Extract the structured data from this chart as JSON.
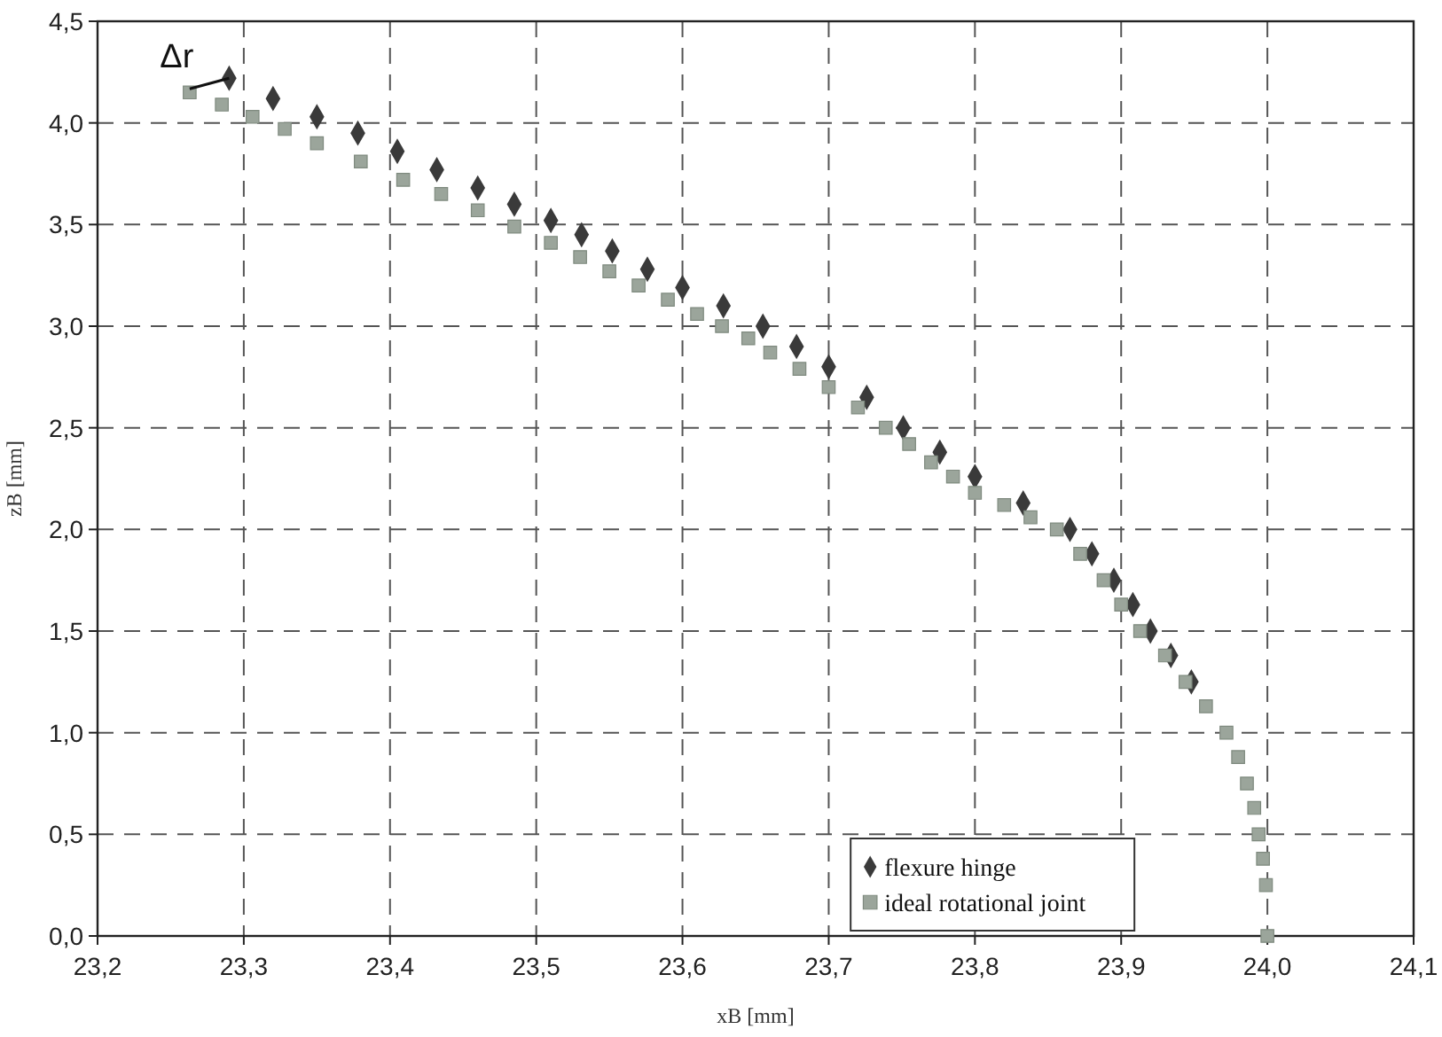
{
  "chart_data": {
    "type": "scatter",
    "xlabel": "xB [mm]",
    "ylabel": "zB [mm]",
    "xlim": [
      23.2,
      24.1
    ],
    "xticks": [
      {
        "value": 23.2,
        "label": "23,2"
      },
      {
        "value": 23.3,
        "label": "23,3"
      },
      {
        "value": 23.4,
        "label": "23,4"
      },
      {
        "value": 23.5,
        "label": "23,5"
      },
      {
        "value": 23.6,
        "label": "23,6"
      },
      {
        "value": 23.7,
        "label": "23,7"
      },
      {
        "value": 23.8,
        "label": "23,8"
      },
      {
        "value": 23.9,
        "label": "23,9"
      },
      {
        "value": 24.0,
        "label": "24,0"
      },
      {
        "value": 24.1,
        "label": "24,1"
      }
    ],
    "ylim": [
      0,
      4.5
    ],
    "yticks": [
      {
        "value": 0,
        "label": "0,0"
      },
      {
        "value": 0.5,
        "label": "0,5"
      },
      {
        "value": 1.0,
        "label": "1,0"
      },
      {
        "value": 1.5,
        "label": "1,5"
      },
      {
        "value": 2.0,
        "label": "2,0"
      },
      {
        "value": 2.5,
        "label": "2,5"
      },
      {
        "value": 3.0,
        "label": "3,0"
      },
      {
        "value": 3.5,
        "label": "3,5"
      },
      {
        "value": 4.0,
        "label": "4,0"
      },
      {
        "value": 4.5,
        "label": "4,5"
      }
    ],
    "grid": true,
    "legend": "bottom right",
    "annotations": [
      {
        "text": "Δr",
        "x": 23.29,
        "y": 4.22
      }
    ],
    "series": [
      {
        "name": "flexure hinge",
        "color": "#3a3a3a",
        "marker": "diamond",
        "x": [
          23.29,
          23.32,
          23.35,
          23.378,
          23.405,
          23.432,
          23.46,
          23.485,
          23.51,
          23.531,
          23.552,
          23.576,
          23.6,
          23.628,
          23.655,
          23.678,
          23.7,
          23.726,
          23.751,
          23.776,
          23.8,
          23.833,
          23.865,
          23.88,
          23.895,
          23.908,
          23.92,
          23.934,
          23.948
        ],
        "values": [
          4.22,
          4.12,
          4.03,
          3.95,
          3.86,
          3.77,
          3.68,
          3.6,
          3.52,
          3.45,
          3.37,
          3.28,
          3.19,
          3.1,
          3.0,
          2.9,
          2.8,
          2.65,
          2.5,
          2.38,
          2.26,
          2.13,
          2.0,
          1.88,
          1.75,
          1.63,
          1.5,
          1.38,
          1.25
        ]
      },
      {
        "name": "ideal rotational joint",
        "color": "#9ba59b",
        "marker": "square",
        "x": [
          23.263,
          23.285,
          23.306,
          23.328,
          23.35,
          23.38,
          23.409,
          23.435,
          23.46,
          23.485,
          23.51,
          23.53,
          23.55,
          23.57,
          23.59,
          23.61,
          23.627,
          23.645,
          23.66,
          23.68,
          23.7,
          23.72,
          23.739,
          23.755,
          23.77,
          23.785,
          23.8,
          23.82,
          23.838,
          23.856,
          23.872,
          23.888,
          23.9,
          23.913,
          23.93,
          23.944,
          23.958,
          23.972,
          23.98,
          23.986,
          23.991,
          23.994,
          23.997,
          23.999,
          24.0
        ],
        "values": [
          4.15,
          4.09,
          4.03,
          3.97,
          3.9,
          3.81,
          3.72,
          3.65,
          3.57,
          3.49,
          3.41,
          3.34,
          3.27,
          3.2,
          3.13,
          3.06,
          3.0,
          2.94,
          2.87,
          2.79,
          2.7,
          2.6,
          2.5,
          2.42,
          2.33,
          2.26,
          2.18,
          2.12,
          2.06,
          2.0,
          1.88,
          1.75,
          1.63,
          1.5,
          1.38,
          1.25,
          1.13,
          1.0,
          0.88,
          0.75,
          0.63,
          0.5,
          0.38,
          0.25,
          0.0
        ]
      }
    ]
  }
}
